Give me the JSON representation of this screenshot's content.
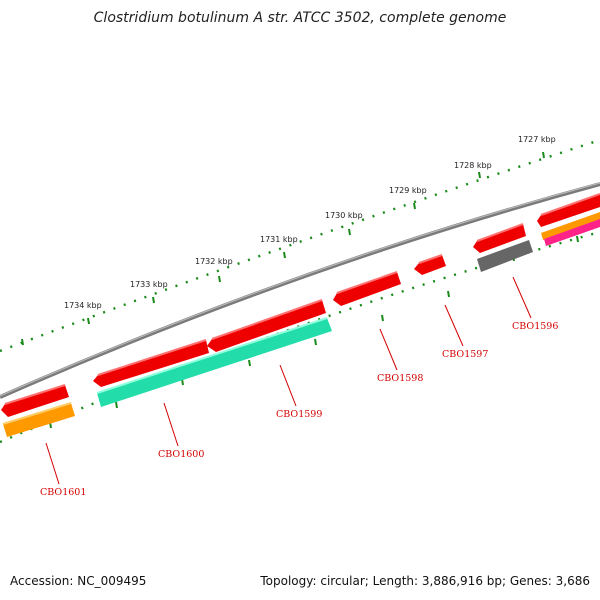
{
  "title": "Clostridium botulinum A str. ATCC 3502, complete genome",
  "footer": {
    "accession": "Accession: NC_009495",
    "topology": "Topology: circular; Length: 3,886,916 bp; Genes: 3,686"
  },
  "scale": {
    "labels": [
      "1727 kbp",
      "1728 kbp",
      "1729 kbp",
      "1730 kbp",
      "1731 kbp",
      "1732 kbp",
      "1733 kbp",
      "1734 kbp"
    ],
    "tick_color": "#1a8a1a"
  },
  "backbone_color": "#888888",
  "gene_labels": [
    "CBO1596",
    "CBO1597",
    "CBO1598",
    "CBO1599",
    "CBO1600",
    "CBO1601"
  ],
  "colors": {
    "cds": "#ff0000",
    "teal": "#22ddaa",
    "orange": "#ff9900",
    "gray": "#666666",
    "magenta": "#ff2288",
    "label": "#d40000"
  }
}
